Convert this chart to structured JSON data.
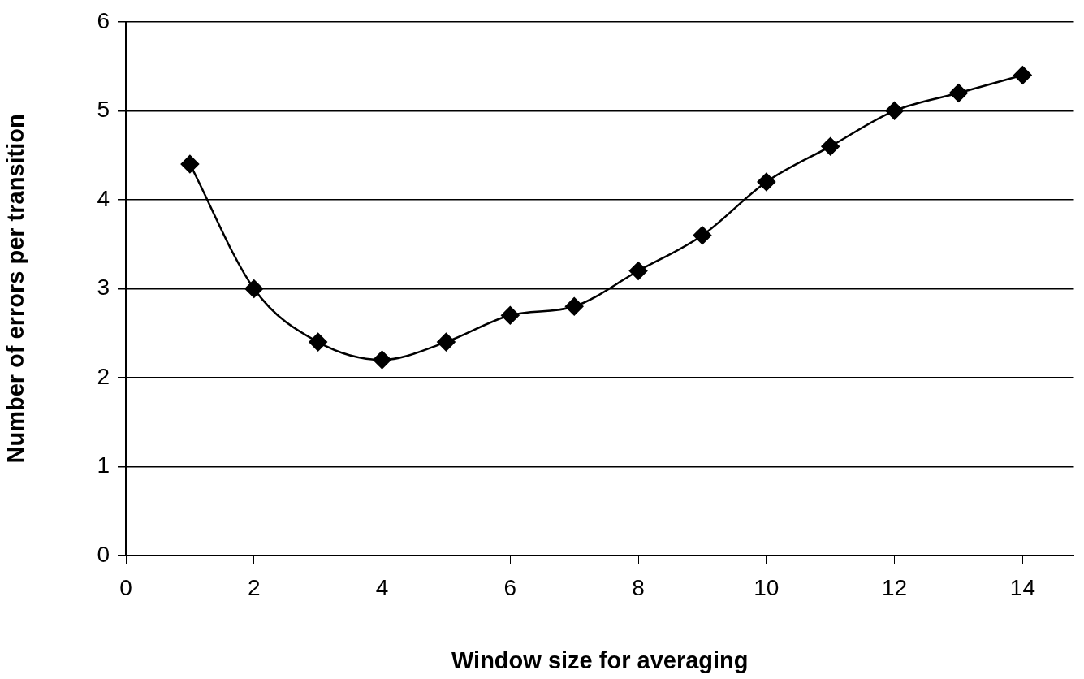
{
  "chart_data": {
    "type": "line",
    "xlabel": "Window size for averaging",
    "ylabel": "Number of errors per transition",
    "x": [
      1,
      2,
      3,
      4,
      5,
      6,
      7,
      8,
      9,
      10,
      11,
      12,
      13,
      14
    ],
    "series": [
      {
        "color": "#000000",
        "values": [
          4.4,
          3.0,
          2.4,
          2.2,
          2.4,
          2.7,
          2.8,
          3.2,
          3.6,
          4.2,
          4.6,
          5.0,
          5.2,
          5.4
        ]
      }
    ],
    "xlim": [
      0,
      14.8
    ],
    "xticks": [
      0,
      2,
      4,
      6,
      8,
      10,
      12,
      14
    ],
    "ylim": [
      0,
      6
    ],
    "yticks": [
      0,
      1,
      2,
      3,
      4,
      5,
      6
    ],
    "grid": "y",
    "marker": "diamond",
    "legend": false
  }
}
